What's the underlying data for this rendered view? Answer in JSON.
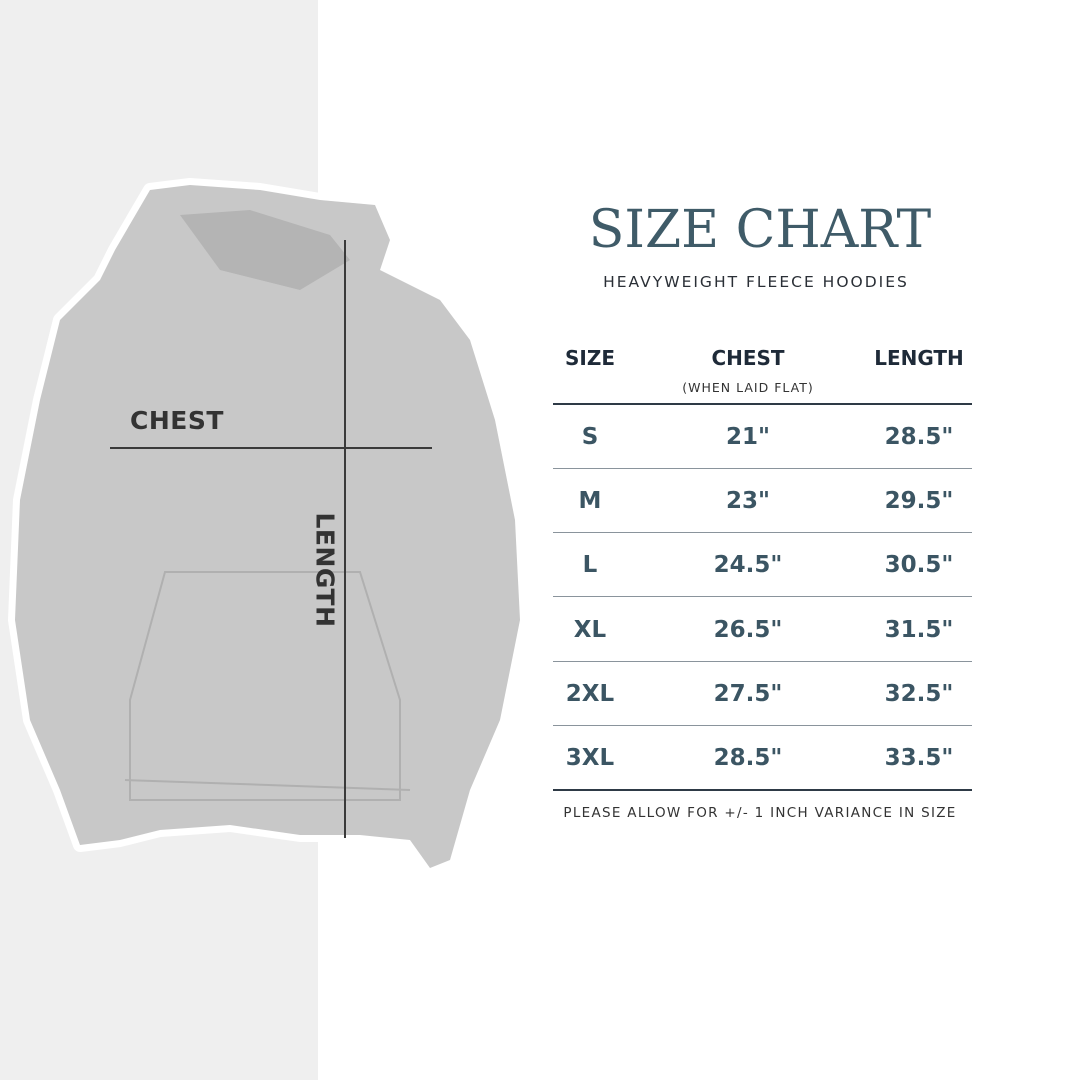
{
  "image_labels": {
    "chest": "CHEST",
    "length": "LENGTH"
  },
  "header": {
    "title": "SIZE CHART",
    "subtitle": "HEAVYWEIGHT FLEECE HOODIES"
  },
  "table": {
    "columns": [
      "SIZE",
      "CHEST",
      "LENGTH"
    ],
    "chest_note": "(WHEN LAID FLAT)",
    "rows": [
      [
        "S",
        "21\"",
        "28.5\""
      ],
      [
        "M",
        "23\"",
        "29.5\""
      ],
      [
        "L",
        "24.5\"",
        "30.5\""
      ],
      [
        "XL",
        "26.5\"",
        "31.5\""
      ],
      [
        "2XL",
        "27.5\"",
        "32.5\""
      ],
      [
        "3XL",
        "28.5\"",
        "33.5\""
      ]
    ]
  },
  "footer_note": "PLEASE ALLOW FOR +/- 1 INCH VARIANCE IN SIZE",
  "colors": {
    "title": "#3f5b68",
    "header": "#1e2a38",
    "values": "#3b5563",
    "panel": "#efefef",
    "hoodie": "#c9c9c9"
  }
}
